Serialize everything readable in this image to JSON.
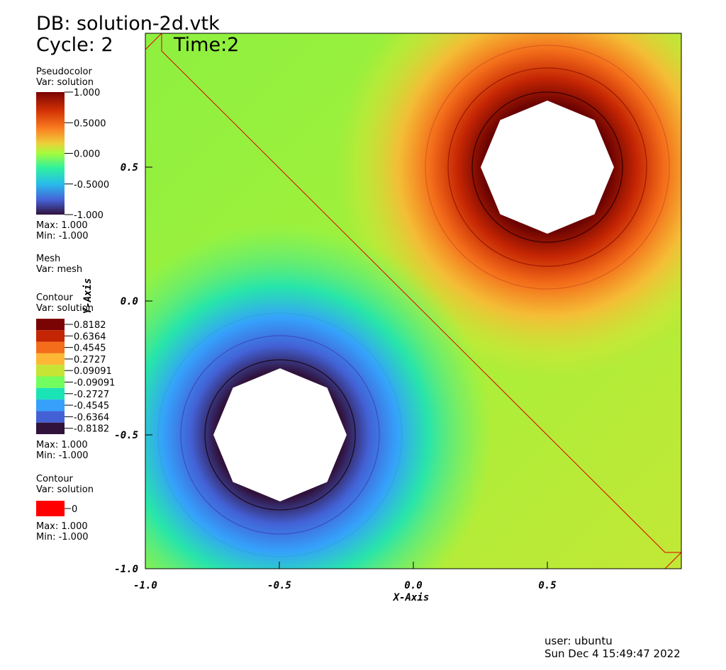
{
  "header": {
    "db": "DB: solution-2d.vtk",
    "cycle": "Cycle: 2",
    "time": "Time:2"
  },
  "legends": [
    {
      "title": "Pseudocolor",
      "var": "Var: solution",
      "labels": [
        "1.000",
        "0.5000",
        "0.000",
        "-0.5000",
        "-1.000"
      ],
      "max": "Max:  1.000",
      "min": "Min: -1.000"
    },
    {
      "title": "Mesh",
      "var": "Var: mesh"
    },
    {
      "title": "Contour",
      "var": "Var: solution",
      "levels": [
        {
          "label": "0.8182",
          "color": "#7a0403"
        },
        {
          "label": "0.6364",
          "color": "#c42503"
        },
        {
          "label": "0.4545",
          "color": "#f36d1a"
        },
        {
          "label": "0.2727",
          "color": "#fdb735"
        },
        {
          "label": "0.09091",
          "color": "#c5e434"
        },
        {
          "label": "-0.09091",
          "color": "#72fe5e"
        },
        {
          "label": "-0.2727",
          "color": "#1ae4b6"
        },
        {
          "label": "-0.4545",
          "color": "#35a1fb"
        },
        {
          "label": "-0.6364",
          "color": "#4361d5"
        },
        {
          "label": "-0.8182",
          "color": "#30123b"
        }
      ],
      "max": "Max:  1.000",
      "min": "Min: -1.000"
    },
    {
      "title": "Contour",
      "var": "Var: solution",
      "levels": [
        {
          "label": "0",
          "color": "#ff0000"
        }
      ],
      "max": "Max:  1.000",
      "min": "Min: -1.000"
    }
  ],
  "axes": {
    "x_label": "X-Axis",
    "y_label": "Y-Axis",
    "xlim": [
      -1,
      1
    ],
    "ylim": [
      -1,
      1
    ],
    "xticks": [
      {
        "value": -1,
        "label": "-1.0"
      },
      {
        "value": -0.5,
        "label": "-0.5"
      },
      {
        "value": 0,
        "label": "0.0"
      },
      {
        "value": 0.5,
        "label": "0.5"
      }
    ],
    "yticks": [
      {
        "value": -1,
        "label": "-1.0"
      },
      {
        "value": -0.5,
        "label": "-0.5"
      },
      {
        "value": 0,
        "label": "0.0"
      },
      {
        "value": 0.5,
        "label": "0.5"
      }
    ]
  },
  "footer": {
    "user": "user: ubuntu",
    "date": "Sun Dec  4 15:49:47 2022"
  }
}
